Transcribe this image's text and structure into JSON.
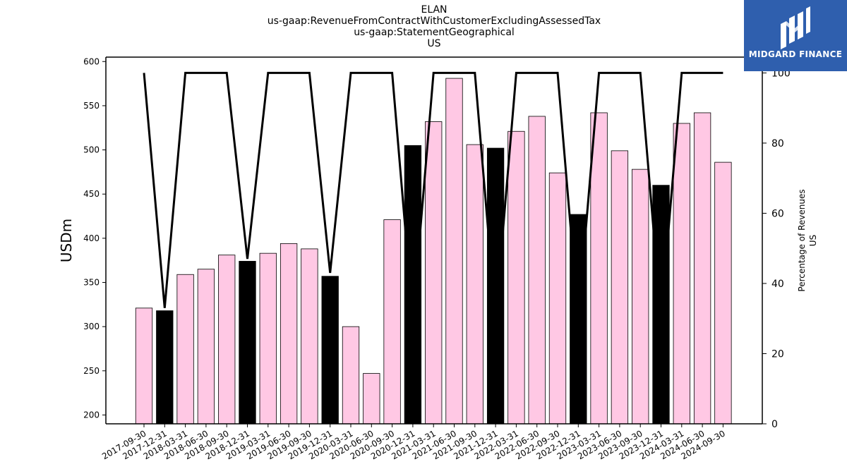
{
  "header": {
    "title_lines": [
      "ELAN",
      "us-gaap:RevenueFromContractWithCustomerExcludingAssessedTax",
      "us-gaap:StatementGeographical",
      "US"
    ]
  },
  "logo": {
    "text": "MIDGARD FINANCE",
    "icon": "midgard-logo-icon",
    "background": "#2f5fae"
  },
  "chart_data": {
    "type": "bar",
    "categories": [
      "2017-09-30",
      "2017-12-31",
      "2018-03-31",
      "2018-06-30",
      "2018-09-30",
      "2018-12-31",
      "2019-03-31",
      "2019-06-30",
      "2019-09-30",
      "2019-12-31",
      "2020-03-31",
      "2020-06-30",
      "2020-09-30",
      "2020-12-31",
      "2021-03-31",
      "2021-06-30",
      "2021-09-30",
      "2021-12-31",
      "2022-03-31",
      "2022-06-30",
      "2022-09-30",
      "2022-12-31",
      "2023-03-31",
      "2023-06-30",
      "2023-09-30",
      "2023-12-31",
      "2024-03-31",
      "2024-06-30",
      "2024-09-30"
    ],
    "values": [
      321,
      318,
      359,
      365,
      381,
      374,
      383,
      394,
      388,
      357,
      300,
      247,
      421,
      505,
      532,
      581,
      506,
      502,
      521,
      538,
      474,
      427,
      542,
      499,
      478,
      460,
      530,
      542,
      486
    ],
    "bar_colors": [
      "#ffc8e4",
      "#000000",
      "#ffc8e4",
      "#ffc8e4",
      "#ffc8e4",
      "#000000",
      "#ffc8e4",
      "#ffc8e4",
      "#ffc8e4",
      "#000000",
      "#ffc8e4",
      "#ffc8e4",
      "#ffc8e4",
      "#000000",
      "#ffc8e4",
      "#ffc8e4",
      "#ffc8e4",
      "#000000",
      "#ffc8e4",
      "#ffc8e4",
      "#ffc8e4",
      "#000000",
      "#ffc8e4",
      "#ffc8e4",
      "#ffc8e4",
      "#000000",
      "#ffc8e4",
      "#ffc8e4",
      "#ffc8e4"
    ],
    "series": [
      {
        "values": [
          100,
          33,
          100,
          100,
          100,
          47,
          100,
          100,
          100,
          43,
          100,
          100,
          100,
          30,
          100,
          100,
          100,
          30,
          100,
          100,
          100,
          30,
          100,
          100,
          100,
          30,
          100,
          100,
          100
        ],
        "axis": "right",
        "color": "#000000"
      }
    ],
    "ylabel": "USDm",
    "y2label_lines": [
      "Percentage of Revenues",
      "US"
    ],
    "ylim": [
      190,
      605
    ],
    "y2lim": [
      0,
      104.5
    ],
    "yticks": [
      200,
      250,
      300,
      350,
      400,
      450,
      500,
      550,
      600
    ],
    "y2ticks": [
      0,
      20,
      40,
      60,
      80,
      100
    ],
    "grid": false,
    "legend": "none"
  }
}
